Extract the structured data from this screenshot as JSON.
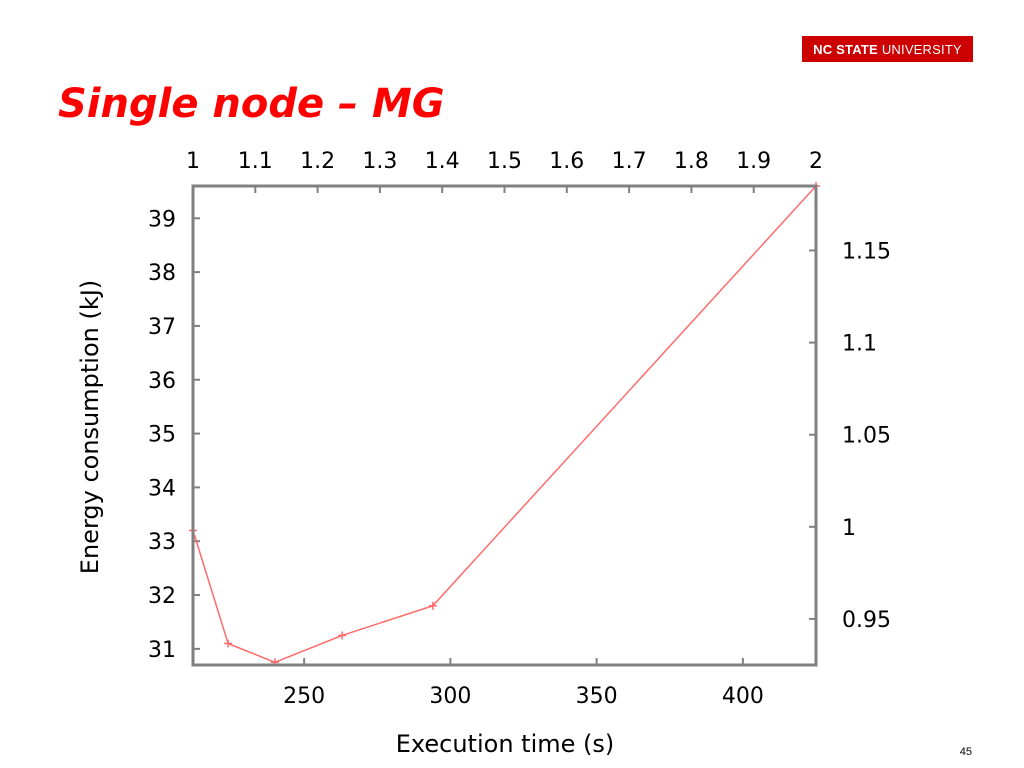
{
  "slide": {
    "title": "Single node – MG",
    "logo_bold": "NC STATE",
    "logo_rest": "UNIVERSITY",
    "page_number": "45"
  },
  "colors": {
    "accent": "#ff0000",
    "logo_bg": "#cc0000",
    "series": "#ff6b6b",
    "axis": "#808080"
  },
  "chart_data": {
    "type": "line",
    "title": "",
    "xlabel": "Execution time (s)",
    "ylabel": "Energy consumption (kJ)",
    "xlim": [
      212,
      425
    ],
    "ylim": [
      30.7,
      39.6
    ],
    "xticks": [
      250,
      300,
      350,
      400
    ],
    "yticks": [
      31,
      32,
      33,
      34,
      35,
      36,
      37,
      38,
      39
    ],
    "x2ticks": [
      "1",
      "1.1",
      "1.2",
      "1.3",
      "1.4",
      "1.5",
      "1.6",
      "1.7",
      "1.8",
      "1.9",
      "2"
    ],
    "y2lim": [
      0.925,
      1.185
    ],
    "y2ticks": [
      "0.95",
      "1",
      "1.05",
      "1.1",
      "1.15"
    ],
    "grid": false,
    "series": [
      {
        "x": [
          212,
          224,
          240,
          263,
          294,
          425
        ],
        "y": [
          33.2,
          31.1,
          30.75,
          31.25,
          31.8,
          39.6
        ]
      }
    ]
  }
}
